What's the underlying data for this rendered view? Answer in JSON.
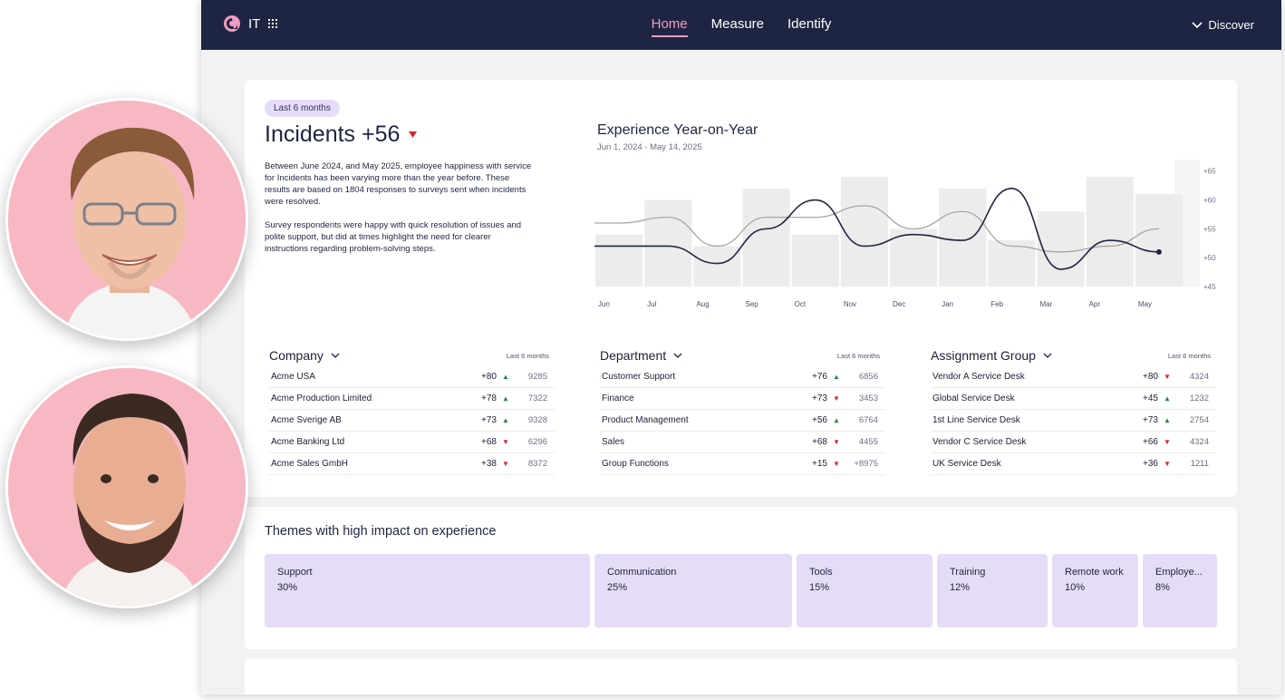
{
  "topbar": {
    "app_label": "IT",
    "nav": [
      "Home",
      "Measure",
      "Identify"
    ],
    "discover_label": "Discover"
  },
  "summary": {
    "period_pill": "Last 6 months",
    "headline": "Incidents +56",
    "paragraph_1": "Between June 2024, and May 2025, employee happiness with service for Incidents has been varying more than the year before. These results are based on 1804 responses to surveys sent when incidents were resolved.",
    "paragraph_2": "Survey respondents were happy with quick resolution of issues and polite support, but did at times highlight the need for clearer instructions regarding problem-solving steps."
  },
  "chart_data": {
    "type": "line",
    "title": "Experience Year-on-Year",
    "subtitle": "Jun 1, 2024 - May 14, 2025",
    "categories": [
      "Jun",
      "Jul",
      "Aug",
      "Sep",
      "Oct",
      "Nov",
      "Dec",
      "Jan",
      "Feb",
      "Mar",
      "Apr",
      "May"
    ],
    "y_ticks": [
      "+65",
      "+60",
      "+55",
      "+50",
      "+45"
    ],
    "ylim": [
      45,
      67
    ],
    "bars": [
      54,
      60,
      52,
      62,
      54,
      64,
      55,
      62,
      53,
      58,
      64,
      61
    ],
    "series": [
      {
        "values": [
          52,
          52,
          49,
          55,
          60,
          52,
          54,
          53,
          62,
          48,
          53,
          51
        ]
      },
      {
        "values": [
          56,
          57,
          52,
          57,
          57,
          59,
          55,
          58,
          52,
          51,
          52,
          55
        ]
      }
    ],
    "grid": false,
    "legend": "none"
  },
  "tables": [
    {
      "title": "Company",
      "range": "Last 6 months",
      "rows": [
        {
          "name": "Acme USA",
          "delta": "+80",
          "dir": "up",
          "count": "9285"
        },
        {
          "name": "Acme Production Limited",
          "delta": "+78",
          "dir": "up",
          "count": "7322"
        },
        {
          "name": "Acme Sverige AB",
          "delta": "+73",
          "dir": "up",
          "count": "9328"
        },
        {
          "name": "Acme Banking Ltd",
          "delta": "+68",
          "dir": "down",
          "count": "6296"
        },
        {
          "name": "Acme Sales GmbH",
          "delta": "+38",
          "dir": "down",
          "count": "8372"
        }
      ]
    },
    {
      "title": "Department",
      "range": "Last 6 months",
      "rows": [
        {
          "name": "Customer Support",
          "delta": "+76",
          "dir": "up",
          "count": "6856"
        },
        {
          "name": "Finance",
          "delta": "+73",
          "dir": "down",
          "count": "3453"
        },
        {
          "name": "Product Management",
          "delta": "+56",
          "dir": "up",
          "count": "6764"
        },
        {
          "name": "Sales",
          "delta": "+68",
          "dir": "down",
          "count": "4455"
        },
        {
          "name": "Group Functions",
          "delta": "+15",
          "dir": "down",
          "count": "+8975"
        }
      ]
    },
    {
      "title": "Assignment Group",
      "range": "Last 6 months",
      "rows": [
        {
          "name": "Vendor A Service Desk",
          "delta": "+80",
          "dir": "down",
          "count": "4324"
        },
        {
          "name": "Global Service Desk",
          "delta": "+45",
          "dir": "up",
          "count": "1232"
        },
        {
          "name": "1st Line Service Desk",
          "delta": "+73",
          "dir": "up",
          "count": "2754"
        },
        {
          "name": "Vendor C Service Desk",
          "delta": "+66",
          "dir": "down",
          "count": "4324"
        },
        {
          "name": "UK Service Desk",
          "delta": "+36",
          "dir": "down",
          "count": "1211"
        }
      ]
    }
  ],
  "themes": {
    "title": "Themes with high impact on experience",
    "items": [
      {
        "name": "Support",
        "value": "30%"
      },
      {
        "name": "Communication",
        "value": "25%"
      },
      {
        "name": "Tools",
        "value": "15%"
      },
      {
        "name": "Training",
        "value": "12%"
      },
      {
        "name": "Remote work",
        "value": "10%"
      },
      {
        "name": "Employe...",
        "value": "8%"
      }
    ]
  },
  "colors": {
    "topbar": "#1e2542",
    "accent_pink": "#f49ac1",
    "theme_tile": "#e6dcf7",
    "up": "#1f8a3b",
    "down": "#d6232f"
  }
}
